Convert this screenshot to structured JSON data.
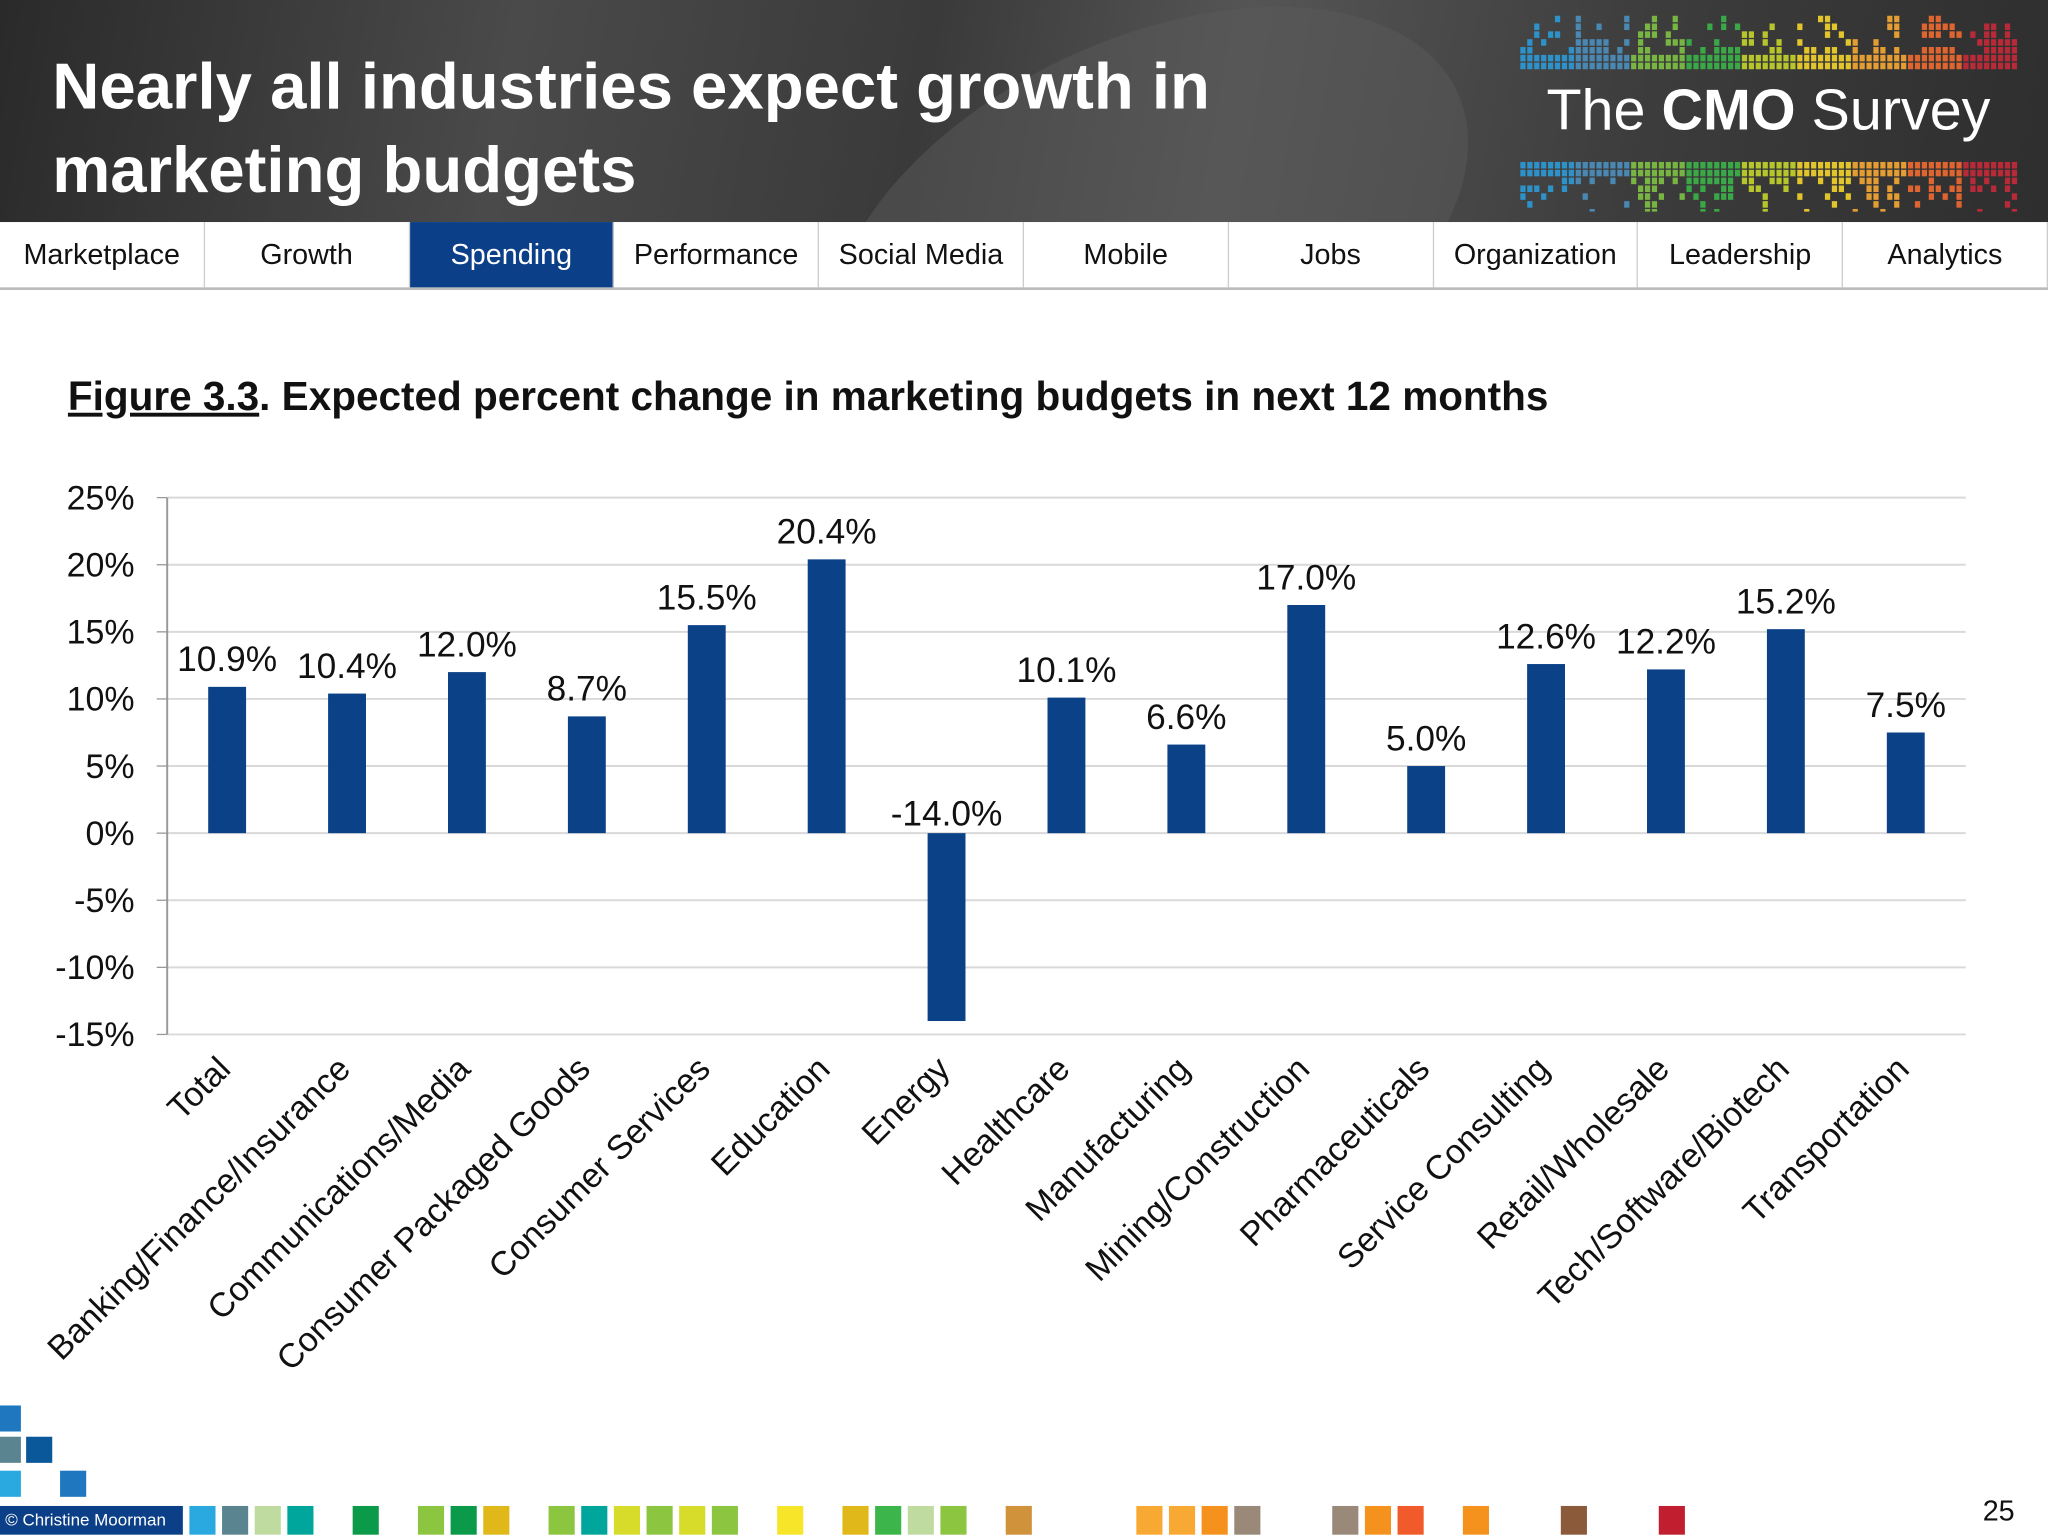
{
  "header": {
    "title_line1": "Nearly all industries expect growth in",
    "title_line2": "marketing budgets",
    "logo_prefix": "The",
    "logo_bold": "CMO",
    "logo_suffix": "Survey"
  },
  "nav": {
    "tabs": [
      {
        "label": "Marketplace"
      },
      {
        "label": "Growth"
      },
      {
        "label": "Spending",
        "active": true
      },
      {
        "label": "Performance"
      },
      {
        "label": "Social Media"
      },
      {
        "label": "Mobile"
      },
      {
        "label": "Jobs"
      },
      {
        "label": "Organization"
      },
      {
        "label": "Leadership"
      },
      {
        "label": "Analytics"
      }
    ]
  },
  "figure": {
    "number": "Figure 3.3",
    "caption": ".  Expected percent change in marketing budgets in next 12 months"
  },
  "chart_data": {
    "type": "bar",
    "title": "Figure 3.3.  Expected percent change in marketing budgets in next 12 months",
    "categories": [
      "Total",
      "Banking/Finance/Insurance",
      "Communications/Media",
      "Consumer Packaged Goods",
      "Consumer Services",
      "Education",
      "Energy",
      "Healthcare",
      "Manufacturing",
      "Mining/Construction",
      "Pharmaceuticals",
      "Service Consulting",
      "Retail/Wholesale",
      "Tech/Software/Biotech",
      "Transportation"
    ],
    "values": [
      10.9,
      10.4,
      12.0,
      8.7,
      15.5,
      20.4,
      -14.0,
      10.1,
      6.6,
      17.0,
      5.0,
      12.6,
      12.2,
      15.2,
      7.5
    ],
    "data_labels": [
      "10.9%",
      "10.4%",
      "12.0%",
      "8.7%",
      "15.5%",
      "20.4%",
      "-14.0%",
      "10.1%",
      "6.6%",
      "17.0%",
      "5.0%",
      "12.6%",
      "12.2%",
      "15.2%",
      "7.5%"
    ],
    "yticks": [
      25,
      20,
      15,
      10,
      5,
      0,
      -5,
      -10,
      -15
    ],
    "ytick_labels": [
      "25%",
      "20%",
      "15%",
      "10%",
      "5%",
      "0%",
      "-5%",
      "-10%",
      "-15%"
    ],
    "ylim": [
      -15,
      25
    ],
    "grid": true,
    "bar_color": "#0b4187"
  },
  "footer": {
    "credit": "© Christine Moorman",
    "page_number": "25"
  }
}
